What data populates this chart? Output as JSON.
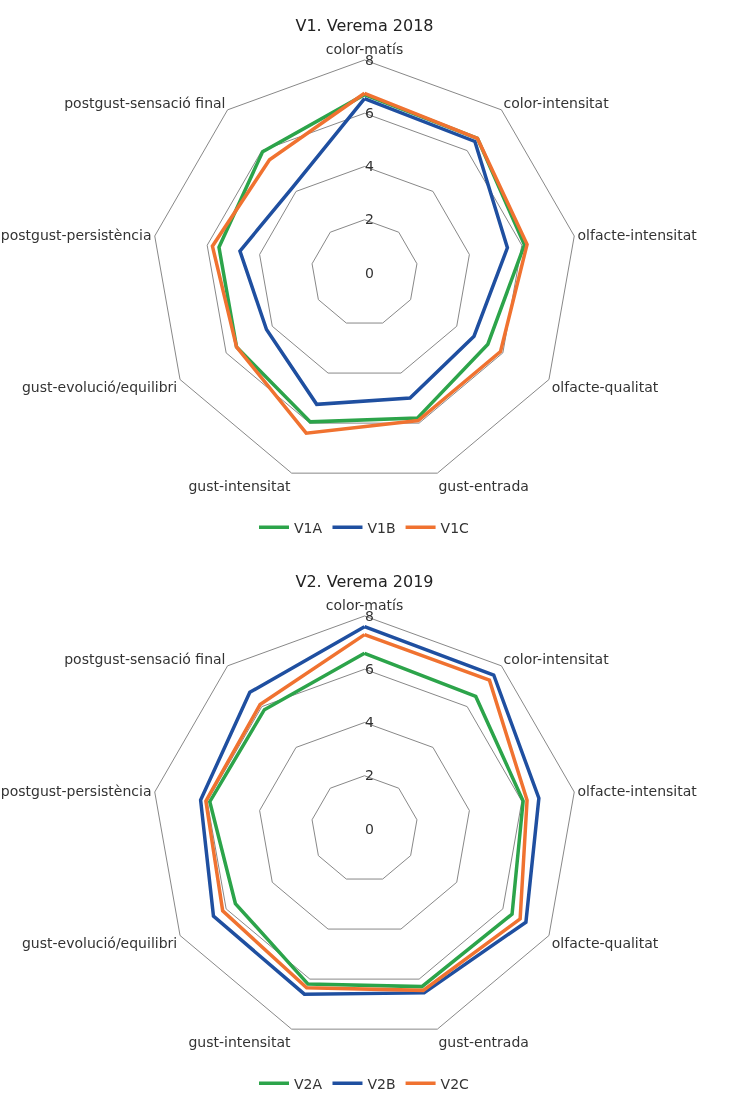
{
  "chart_data": [
    {
      "type": "radar",
      "title": "V1. Verema 2018",
      "categories": [
        "color-matís",
        "color-intensitat",
        "olfacte-intensitat",
        "olfacte-qualitat",
        "gust-entrada",
        "gust-intensitat",
        "gust-evolució/equilibri",
        "postgust-persistència",
        "postgust-sensació final"
      ],
      "series": [
        {
          "name": "V1A",
          "color": "#2ca44a",
          "values": [
            6.7,
            6.6,
            6.1,
            5.35,
            5.8,
            5.95,
            5.55,
            5.55,
            5.95
          ]
        },
        {
          "name": "V1B",
          "color": "#1f4fa0",
          "values": [
            6.55,
            6.45,
            5.45,
            4.75,
            5.0,
            5.25,
            4.25,
            4.75,
            4.2
          ]
        },
        {
          "name": "V1C",
          "color": "#f07230",
          "values": [
            6.75,
            6.6,
            6.2,
            5.9,
            5.9,
            6.4,
            5.55,
            5.8,
            5.55
          ]
        }
      ],
      "ylim": [
        0,
        8
      ],
      "yticks": [
        0,
        2,
        4,
        6,
        8
      ],
      "grid": true,
      "legend": "bottom",
      "marker": "none",
      "line_style": "solid"
    },
    {
      "type": "radar",
      "title": "V2. Verema 2019",
      "categories": [
        "color-matís",
        "color-intensitat",
        "olfacte-intensitat",
        "olfacte-qualitat",
        "gust-entrada",
        "gust-intensitat",
        "gust-evolució/equilibri",
        "postgust-persistència",
        "postgust-sensació final"
      ],
      "series": [
        {
          "name": "V2A",
          "color": "#2ca44a",
          "values": [
            6.6,
            6.5,
            6.05,
            6.4,
            6.3,
            6.2,
            5.6,
            5.9,
            5.85
          ]
        },
        {
          "name": "V2B",
          "color": "#1f4fa0",
          "values": [
            7.6,
            7.55,
            6.65,
            7.0,
            6.55,
            6.6,
            6.55,
            6.25,
            6.7
          ]
        },
        {
          "name": "V2C",
          "color": "#f07230",
          "values": [
            7.3,
            7.3,
            6.2,
            6.75,
            6.45,
            6.35,
            6.15,
            6.05,
            6.1
          ]
        }
      ],
      "ylim": [
        0,
        8
      ],
      "yticks": [
        0,
        2,
        4,
        6,
        8
      ],
      "grid": true,
      "legend": "bottom",
      "marker": "none",
      "line_style": "solid"
    }
  ]
}
